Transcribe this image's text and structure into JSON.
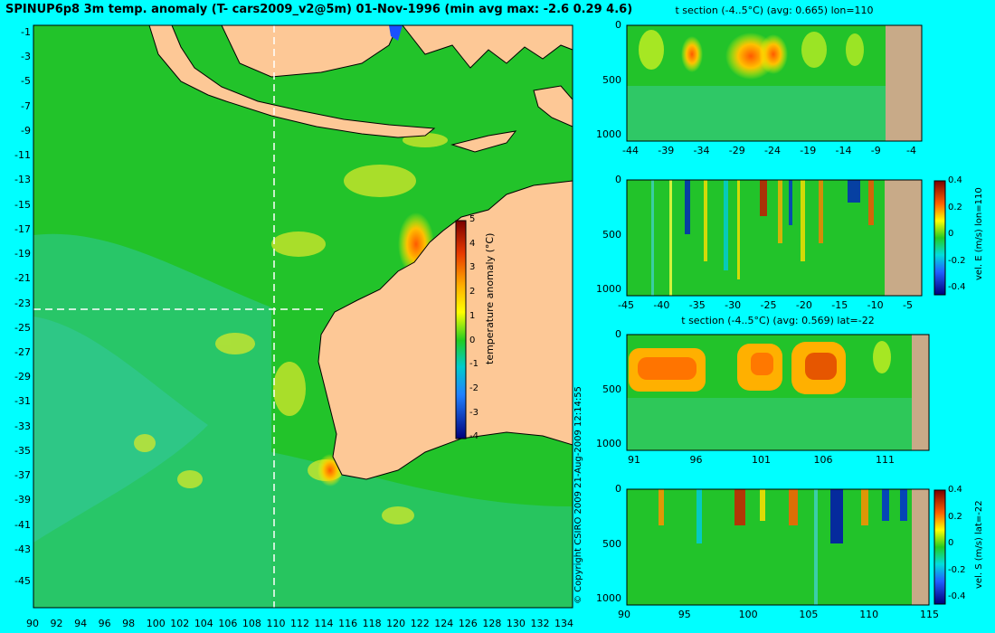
{
  "map": {
    "title": "SPINUP6p8 3m temp. anomaly (T- cars2009_v2@5m) 01-Nov-1996 (min avg max: -2.6 0.29 4.6)",
    "lat_ticks": [
      "-1",
      "-3",
      "-5",
      "-7",
      "-9",
      "-11",
      "-13",
      "-15",
      "-17",
      "-19",
      "-21",
      "-23",
      "-25",
      "-27",
      "-29",
      "-31",
      "-33",
      "-35",
      "-37",
      "-39",
      "-41",
      "-43",
      "-45"
    ],
    "lon_ticks": [
      "90",
      "92",
      "94",
      "96",
      "98",
      "100",
      "102",
      "104",
      "106",
      "108",
      "110",
      "112",
      "114",
      "116",
      "118",
      "120",
      "122",
      "124",
      "126",
      "128",
      "130",
      "132",
      "134"
    ],
    "section_lon": 110,
    "section_lat": -22,
    "colorbar": {
      "label": "temperature anomaly (°C)",
      "ticks": [
        "5",
        "4",
        "3",
        "2",
        "1",
        "0",
        "-1",
        "-2",
        "-3",
        "-4"
      ]
    },
    "copyright": "© Copyright CSIRO 2009  21-Aug-2009 12:14:55"
  },
  "panels": [
    {
      "title": "t section (-4..5°C) (avg: 0.665) lon=110",
      "y_ticks": [
        "0",
        "500",
        "1000"
      ],
      "x_ticks": [
        "-44",
        "-39",
        "-34",
        "-29",
        "-24",
        "-19",
        "-14",
        "-9",
        "-4"
      ],
      "colorbar": null
    },
    {
      "title": "",
      "y_ticks": [
        "0",
        "500",
        "1000"
      ],
      "x_ticks": [
        "-45",
        "-40",
        "-35",
        "-30",
        "-25",
        "-20",
        "-15",
        "-10",
        "-5"
      ],
      "colorbar": {
        "label": "vel. E (m/s) lon=110",
        "ticks": [
          "0.4",
          "0.2",
          "0",
          "-0.2",
          "-0.4"
        ]
      }
    },
    {
      "title": "t section (-4..5°C) (avg: 0.569) lat=-22",
      "y_ticks": [
        "0",
        "500",
        "1000"
      ],
      "x_ticks": [
        "91",
        "96",
        "101",
        "106",
        "111"
      ],
      "colorbar": null
    },
    {
      "title": "",
      "y_ticks": [
        "0",
        "500",
        "1000"
      ],
      "x_ticks": [
        "90",
        "95",
        "100",
        "105",
        "110",
        "115"
      ],
      "colorbar": {
        "label": "vel. S (m/s) lat=-22",
        "ticks": [
          "0.4",
          "0.2",
          "0",
          "-0.2",
          "-0.4"
        ]
      }
    }
  ],
  "colors": {
    "background": "#00ffff",
    "ocean": "#22c32a",
    "land": "#fdc896",
    "section_land": "#c8aa88"
  }
}
